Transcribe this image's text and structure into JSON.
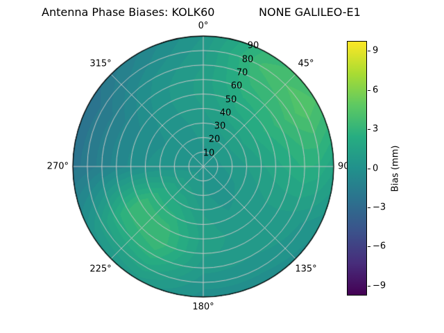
{
  "title": {
    "left": "Antenna Phase Biases: KOLK60",
    "right": "NONE GALILEO-E1"
  },
  "chart_data": {
    "type": "heatmap",
    "projection": "polar",
    "title": "Antenna Phase Biases: KOLK60          NONE GALILEO-E1",
    "theta_zero_location": "N",
    "theta_direction": "clockwise",
    "theta_ticks": [
      {
        "angle": 0,
        "label": "0°"
      },
      {
        "angle": 45,
        "label": "45°"
      },
      {
        "angle": 90,
        "label": "90"
      },
      {
        "angle": 135,
        "label": "135°"
      },
      {
        "angle": 180,
        "label": "180°"
      },
      {
        "angle": 225,
        "label": "225°"
      },
      {
        "angle": 270,
        "label": "270°"
      },
      {
        "angle": 315,
        "label": "315°"
      }
    ],
    "r_ticks": [
      10,
      20,
      30,
      40,
      50,
      60,
      70,
      80,
      90
    ],
    "r_max": 90,
    "r_label_angle_deg": 22.5,
    "colorbar": {
      "label": "Bias (mm)",
      "ticks": [
        9,
        6,
        3,
        0,
        -3,
        -6,
        -9
      ],
      "tick_labels": [
        "9",
        "6",
        "3",
        "0",
        "−3",
        "−6",
        "−9"
      ],
      "range": [
        -9.75,
        9.75
      ]
    },
    "colormap": {
      "name": "viridis",
      "stops": [
        {
          "t": 0.0,
          "color": "#440154"
        },
        {
          "t": 0.125,
          "color": "#472d7b"
        },
        {
          "t": 0.25,
          "color": "#3b528b"
        },
        {
          "t": 0.375,
          "color": "#2c728e"
        },
        {
          "t": 0.5,
          "color": "#21918c"
        },
        {
          "t": 0.625,
          "color": "#27ad81"
        },
        {
          "t": 0.75,
          "color": "#5ec962"
        },
        {
          "t": 0.875,
          "color": "#aadc32"
        },
        {
          "t": 1.0,
          "color": "#fde725"
        }
      ]
    },
    "contour_step_mm": 0.5,
    "grid": {
      "azimuth_deg": [
        0,
        30,
        60,
        90,
        120,
        150,
        180,
        210,
        240,
        270,
        300,
        330
      ],
      "zenith_deg": [
        0,
        10,
        20,
        30,
        40,
        50,
        60,
        70,
        80,
        90
      ],
      "bias_mm": [
        [
          0.3,
          0.4,
          0.6,
          0.8,
          1.0,
          1.2,
          1.2,
          1.0,
          0.8,
          0.5
        ],
        [
          0.3,
          0.5,
          0.8,
          1.2,
          1.8,
          2.2,
          2.8,
          3.2,
          3.6,
          3.2
        ],
        [
          0.3,
          0.5,
          0.9,
          1.4,
          2.0,
          2.6,
          3.2,
          3.8,
          4.4,
          4.0
        ],
        [
          0.3,
          0.4,
          0.7,
          1.0,
          1.4,
          1.8,
          2.2,
          2.6,
          2.4,
          1.6
        ],
        [
          0.3,
          0.3,
          0.4,
          0.6,
          0.8,
          1.0,
          1.0,
          0.8,
          0.4,
          0.0
        ],
        [
          0.3,
          0.3,
          0.3,
          0.4,
          0.6,
          0.8,
          0.8,
          0.5,
          0.2,
          -0.3
        ],
        [
          0.3,
          0.4,
          0.6,
          0.9,
          1.2,
          1.3,
          1.1,
          0.7,
          0.2,
          -0.2
        ],
        [
          0.3,
          0.6,
          1.2,
          1.9,
          2.6,
          3.2,
          3.4,
          2.8,
          1.8,
          0.8
        ],
        [
          0.3,
          0.6,
          1.3,
          2.0,
          2.8,
          3.3,
          3.0,
          2.2,
          1.2,
          0.2
        ],
        [
          0.3,
          0.3,
          0.3,
          0.2,
          0.0,
          -0.4,
          -0.8,
          -1.3,
          -1.8,
          -2.2
        ],
        [
          0.3,
          0.2,
          0.1,
          0.0,
          -0.2,
          -0.5,
          -0.9,
          -1.4,
          -1.9,
          -2.4
        ],
        [
          0.3,
          0.3,
          0.3,
          0.3,
          0.4,
          0.4,
          0.3,
          0.0,
          -0.6,
          -1.0
        ]
      ]
    },
    "grid_lines": {
      "color": "#c8c8c8",
      "spoke_step_deg": 45,
      "ring_step_deg": 10
    },
    "outline_color": "#000000",
    "background_color": "#ffffff"
  }
}
